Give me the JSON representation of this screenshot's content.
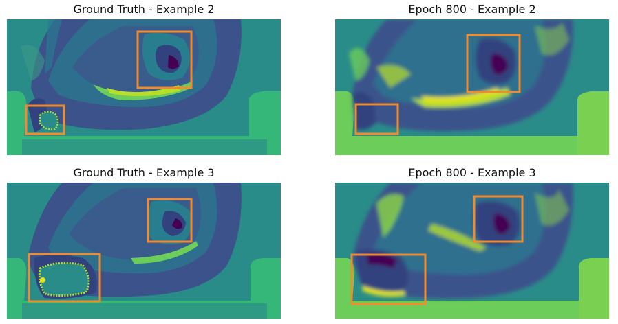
{
  "panels": [
    {
      "title": "Ground Truth - Example 2"
    },
    {
      "title": "Epoch 800 - Example 2"
    },
    {
      "title": "Ground Truth - Example 3"
    },
    {
      "title": "Epoch 800 - Example 3"
    }
  ],
  "colors": {
    "background_field": "#2a8c89",
    "mask_green": "#35b779",
    "deep_blue": "#3b528b",
    "dark_purple": "#440154",
    "indigo": "#31427f",
    "bright_green": "#6ccd5a",
    "yellow": "#e4e31b",
    "highlight_box": "#f28a2e"
  }
}
